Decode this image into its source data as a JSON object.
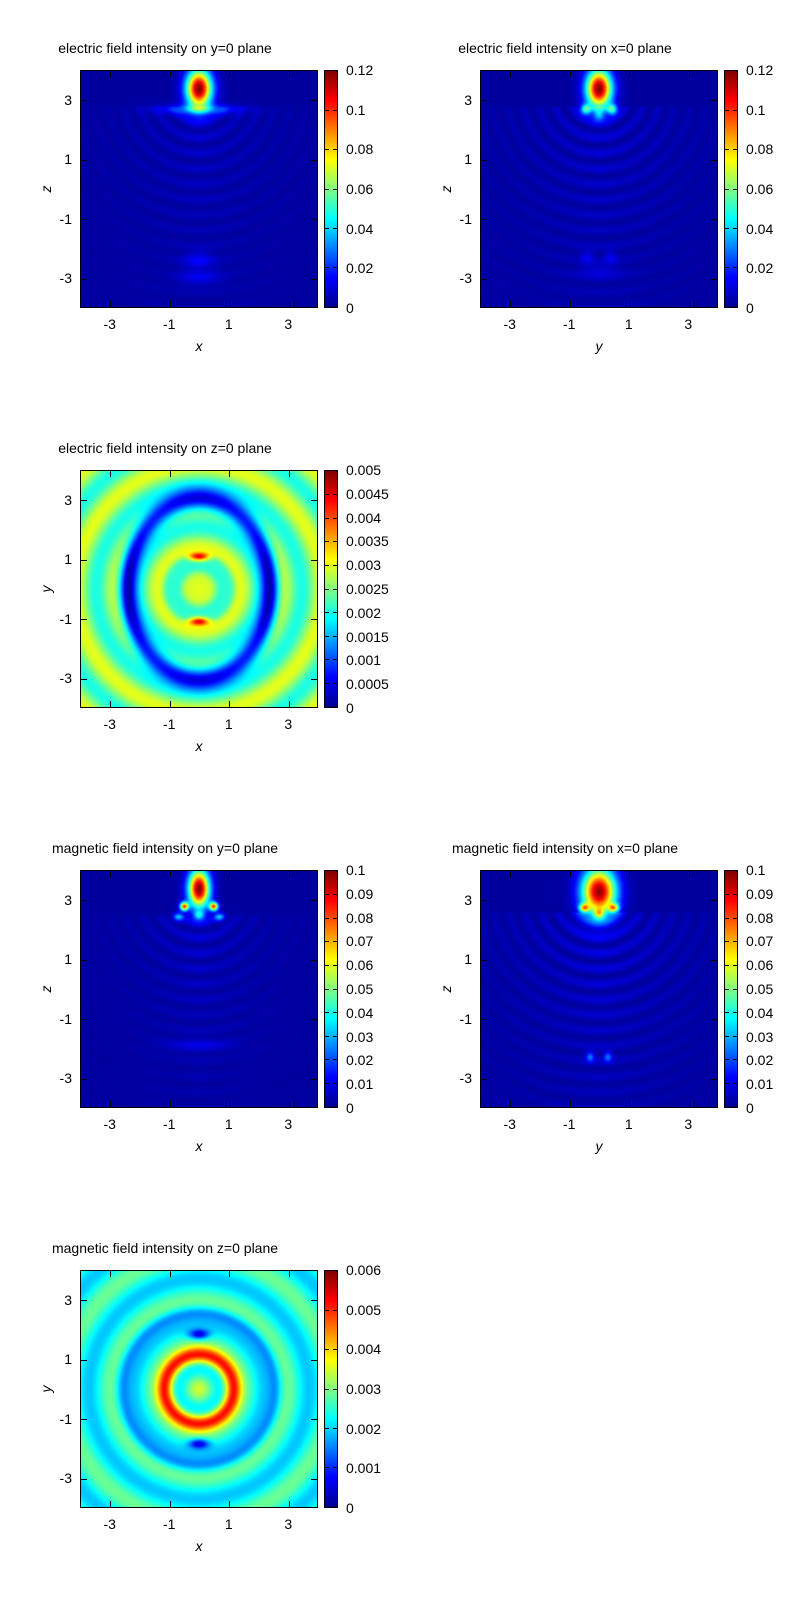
{
  "chart_data": [
    {
      "type": "heatmap",
      "title": "electric field intensity on y=0 plane",
      "xlabel": "x",
      "ylabel": "z",
      "xlim": [
        -4,
        4
      ],
      "ylim": [
        -4,
        4
      ],
      "xticks": [
        "-3",
        "-1",
        "1",
        "3"
      ],
      "yticks": [
        "3",
        "1",
        "-1",
        "-3"
      ],
      "zlim": [
        0,
        0.12
      ],
      "colorbar_ticks": [
        "0.12",
        "0.1",
        "0.08",
        "0.06",
        "0.04",
        "0.02",
        "0"
      ],
      "colormap": "jet",
      "pattern": "E_xz"
    },
    {
      "type": "heatmap",
      "title": "electric field intensity on x=0 plane",
      "xlabel": "y",
      "ylabel": "z",
      "xlim": [
        -4,
        4
      ],
      "ylim": [
        -4,
        4
      ],
      "xticks": [
        "-3",
        "-1",
        "1",
        "3"
      ],
      "yticks": [
        "3",
        "1",
        "-1",
        "-3"
      ],
      "zlim": [
        0,
        0.12
      ],
      "colorbar_ticks": [
        "0.12",
        "0.1",
        "0.08",
        "0.06",
        "0.04",
        "0.02",
        "0"
      ],
      "colormap": "jet",
      "pattern": "E_yz"
    },
    {
      "type": "heatmap",
      "title": "electric field intensity on z=0 plane",
      "xlabel": "x",
      "ylabel": "y",
      "xlim": [
        -4,
        4
      ],
      "ylim": [
        -4,
        4
      ],
      "xticks": [
        "-3",
        "-1",
        "1",
        "3"
      ],
      "yticks": [
        "3",
        "1",
        "-1",
        "-3"
      ],
      "zlim": [
        0,
        0.005
      ],
      "colorbar_ticks": [
        "0.005",
        "0.0045",
        "0.004",
        "0.0035",
        "0.003",
        "0.0025",
        "0.002",
        "0.0015",
        "0.001",
        "0.0005",
        "0"
      ],
      "colormap": "jet",
      "pattern": "E_xy"
    },
    {
      "type": "heatmap",
      "title": "magnetic field intensity on y=0 plane",
      "xlabel": "x",
      "ylabel": "z",
      "xlim": [
        -4,
        4
      ],
      "ylim": [
        -4,
        4
      ],
      "xticks": [
        "-3",
        "-1",
        "1",
        "3"
      ],
      "yticks": [
        "3",
        "1",
        "-1",
        "-3"
      ],
      "zlim": [
        0,
        0.1
      ],
      "colorbar_ticks": [
        "0.1",
        "0.09",
        "0.08",
        "0.07",
        "0.06",
        "0.05",
        "0.04",
        "0.03",
        "0.02",
        "0.01",
        "0"
      ],
      "colormap": "jet",
      "pattern": "H_xz"
    },
    {
      "type": "heatmap",
      "title": "magnetic field intensity on x=0 plane",
      "xlabel": "y",
      "ylabel": "z",
      "xlim": [
        -4,
        4
      ],
      "ylim": [
        -4,
        4
      ],
      "xticks": [
        "-3",
        "-1",
        "1",
        "3"
      ],
      "yticks": [
        "3",
        "1",
        "-1",
        "-3"
      ],
      "zlim": [
        0,
        0.1
      ],
      "colorbar_ticks": [
        "0.1",
        "0.09",
        "0.08",
        "0.07",
        "0.06",
        "0.05",
        "0.04",
        "0.03",
        "0.02",
        "0.01",
        "0"
      ],
      "colormap": "jet",
      "pattern": "H_yz"
    },
    {
      "type": "heatmap",
      "title": "magnetic field intensity on z=0 plane",
      "xlabel": "x",
      "ylabel": "y",
      "xlim": [
        -4,
        4
      ],
      "ylim": [
        -4,
        4
      ],
      "xticks": [
        "-3",
        "-1",
        "1",
        "3"
      ],
      "yticks": [
        "3",
        "1",
        "-1",
        "-3"
      ],
      "zlim": [
        0,
        0.006
      ],
      "colorbar_ticks": [
        "0.006",
        "0.005",
        "0.004",
        "0.003",
        "0.002",
        "0.001",
        "0"
      ],
      "colormap": "jet",
      "pattern": "H_xy"
    }
  ]
}
